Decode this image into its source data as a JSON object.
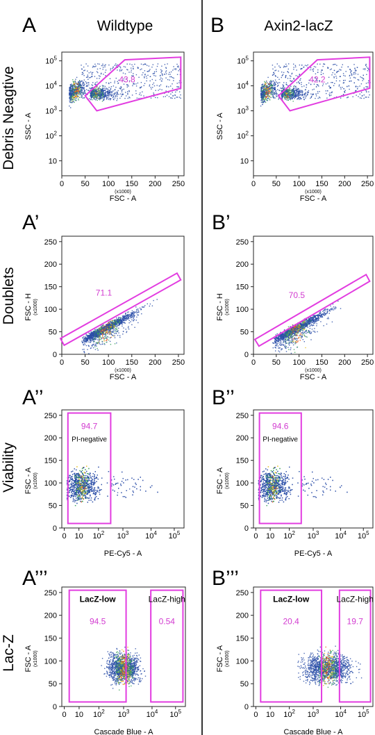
{
  "headers": [
    {
      "letter": "A",
      "title": "Wildtype"
    },
    {
      "letter": "B",
      "title": "Axin2-lacZ"
    }
  ],
  "row_labels": [
    "Debris Neagtive",
    "Doublets",
    "Viability",
    "Lac-Z"
  ],
  "panel_labels": [
    [
      "A",
      "A’",
      "A’’",
      "A’’’"
    ],
    [
      "B",
      "B’",
      "B’’",
      "B’’’"
    ]
  ],
  "colors": {
    "gate": "#e23ce0",
    "gate_text": "#d23bd0",
    "divider": "#333333",
    "density_low": "#2c4fa8",
    "density_mid": "#3aa25a",
    "density_high": "#e8c020",
    "density_peak": "#e8561e"
  },
  "chart_data": [
    {
      "type": "scatter",
      "panel": "A",
      "row": "Debris Neagtive",
      "condition": "Wildtype",
      "xlabel": "FSC - A",
      "xunit": "(x1000)",
      "ylabel": "SSC - A",
      "yscale": "log",
      "xticks": [
        "0",
        "50",
        "100",
        "150",
        "200",
        "250"
      ],
      "yticks": [
        "10",
        "10^2",
        "10^3",
        "10^4",
        "10^5"
      ],
      "gates": [
        {
          "shape": "polygon",
          "vertices": [
            [
              50,
              4000
            ],
            [
              135,
              110000
            ],
            [
              255,
              140000
            ],
            [
              255,
              8000
            ],
            [
              75,
              1000
            ]
          ],
          "label": "43.8",
          "label_at": [
            140,
            14000
          ]
        }
      ]
    },
    {
      "type": "scatter",
      "panel": "B",
      "row": "Debris Neagtive",
      "condition": "Axin2-lacZ",
      "xlabel": "FSC - A",
      "xunit": "(x1000)",
      "ylabel": "SSC - A",
      "yscale": "log",
      "xticks": [
        "0",
        "50",
        "100",
        "150",
        "200",
        "250"
      ],
      "yticks": [
        "10",
        "10^2",
        "10^3",
        "10^4",
        "10^5"
      ],
      "gates": [
        {
          "shape": "polygon",
          "vertices": [
            [
              55,
              4000
            ],
            [
              140,
              110000
            ],
            [
              255,
              140000
            ],
            [
              255,
              8000
            ],
            [
              80,
              1000
            ]
          ],
          "label": "42.2",
          "label_at": [
            140,
            14000
          ]
        }
      ]
    },
    {
      "type": "scatter",
      "panel": "A’",
      "row": "Doublets",
      "condition": "Wildtype",
      "xlabel": "FSC - A",
      "xunit": "(x1000)",
      "ylabel": "FSC - H",
      "yunit": "(x1000)",
      "yscale": "linear",
      "xticks": [
        "0",
        "50",
        "100",
        "150",
        "200",
        "250"
      ],
      "yticks": [
        "0",
        "50",
        "100",
        "150",
        "200",
        "250"
      ],
      "gates": [
        {
          "shape": "polygon",
          "vertices": [
            [
              5,
              20
            ],
            [
              255,
              165
            ],
            [
              247,
              180
            ],
            [
              -3,
              35
            ]
          ],
          "label": "71.1",
          "label_at": [
            90,
            130
          ]
        }
      ]
    },
    {
      "type": "scatter",
      "panel": "B’",
      "row": "Doublets",
      "condition": "Axin2-lacZ",
      "xlabel": "FSC - A",
      "xunit": "(x1000)",
      "ylabel": "FSC - H",
      "yunit": "(x1000)",
      "yscale": "linear",
      "xticks": [
        "0",
        "50",
        "100",
        "150",
        "200",
        "250"
      ],
      "yticks": [
        "0",
        "50",
        "100",
        "150",
        "200",
        "250"
      ],
      "gates": [
        {
          "shape": "polygon",
          "vertices": [
            [
              12,
              18
            ],
            [
              255,
              162
            ],
            [
              247,
              177
            ],
            [
              3,
              33
            ]
          ],
          "label": "70.5",
          "label_at": [
            95,
            125
          ]
        }
      ]
    },
    {
      "type": "scatter",
      "panel": "A’’",
      "row": "Viability",
      "condition": "Wildtype",
      "xlabel": "PE-Cy5 - A",
      "ylabel": "FSC - A",
      "yunit": "(x1000)",
      "xscale": "biexponential",
      "xticks": [
        "0",
        "10",
        "10^2",
        "10^3",
        "10^4",
        "10^5"
      ],
      "yticks": [
        "0",
        "50",
        "100",
        "150",
        "200",
        "250"
      ],
      "gates": [
        {
          "shape": "rect",
          "x": [
            0.05,
            0.4
          ],
          "y": [
            10,
            255
          ],
          "label": "94.7",
          "sublabel": "PI-negative"
        }
      ]
    },
    {
      "type": "scatter",
      "panel": "B’’",
      "row": "Viability",
      "condition": "Axin2-lacZ",
      "xlabel": "PE-Cy5 - A",
      "ylabel": "FSC - A",
      "yunit": "(x1000)",
      "xscale": "biexponential",
      "xticks": [
        "0",
        "10",
        "10^2",
        "10^3",
        "10^4",
        "10^5"
      ],
      "yticks": [
        "0",
        "50",
        "100",
        "150",
        "200",
        "250"
      ],
      "gates": [
        {
          "shape": "rect",
          "x": [
            0.05,
            0.4
          ],
          "y": [
            10,
            255
          ],
          "label": "94.6",
          "sublabel": "PI-negative"
        }
      ]
    },
    {
      "type": "scatter",
      "panel": "A’’’",
      "row": "Lac-Z",
      "condition": "Wildtype",
      "xlabel": "Cascade Blue - A",
      "ylabel": "FSC - A",
      "yunit": "(x1000)",
      "xscale": "biexponential",
      "xticks": [
        "0",
        "10",
        "10^2",
        "10^3",
        "10^4",
        "10^5"
      ],
      "yticks": [
        "0",
        "50",
        "100",
        "150",
        "200",
        "250"
      ],
      "gates": [
        {
          "shape": "rect",
          "x": [
            0.06,
            0.52
          ],
          "y": [
            10,
            255
          ],
          "title": "LacZ-low",
          "label": "94.5"
        },
        {
          "shape": "rect",
          "x": [
            0.72,
            0.98
          ],
          "y": [
            10,
            255
          ],
          "title": "LacZ-high",
          "label": "0.54"
        }
      ]
    },
    {
      "type": "scatter",
      "panel": "B’’’",
      "row": "Lac-Z",
      "condition": "Axin2-lacZ",
      "xlabel": "Cascade Blue - A",
      "ylabel": "FSC - A",
      "yunit": "(x1000)",
      "xscale": "biexponential",
      "xticks": [
        "0",
        "10",
        "10^2",
        "10^3",
        "10^4",
        "10^5"
      ],
      "yticks": [
        "0",
        "50",
        "100",
        "150",
        "200",
        "250"
      ],
      "gates": [
        {
          "shape": "rect",
          "x": [
            0.06,
            0.57
          ],
          "y": [
            10,
            255
          ],
          "title": "LacZ-low",
          "label": "20.4"
        },
        {
          "shape": "rect",
          "x": [
            0.72,
            0.98
          ],
          "y": [
            10,
            255
          ],
          "title": "LacZ-high",
          "label": "19.7"
        }
      ]
    }
  ]
}
